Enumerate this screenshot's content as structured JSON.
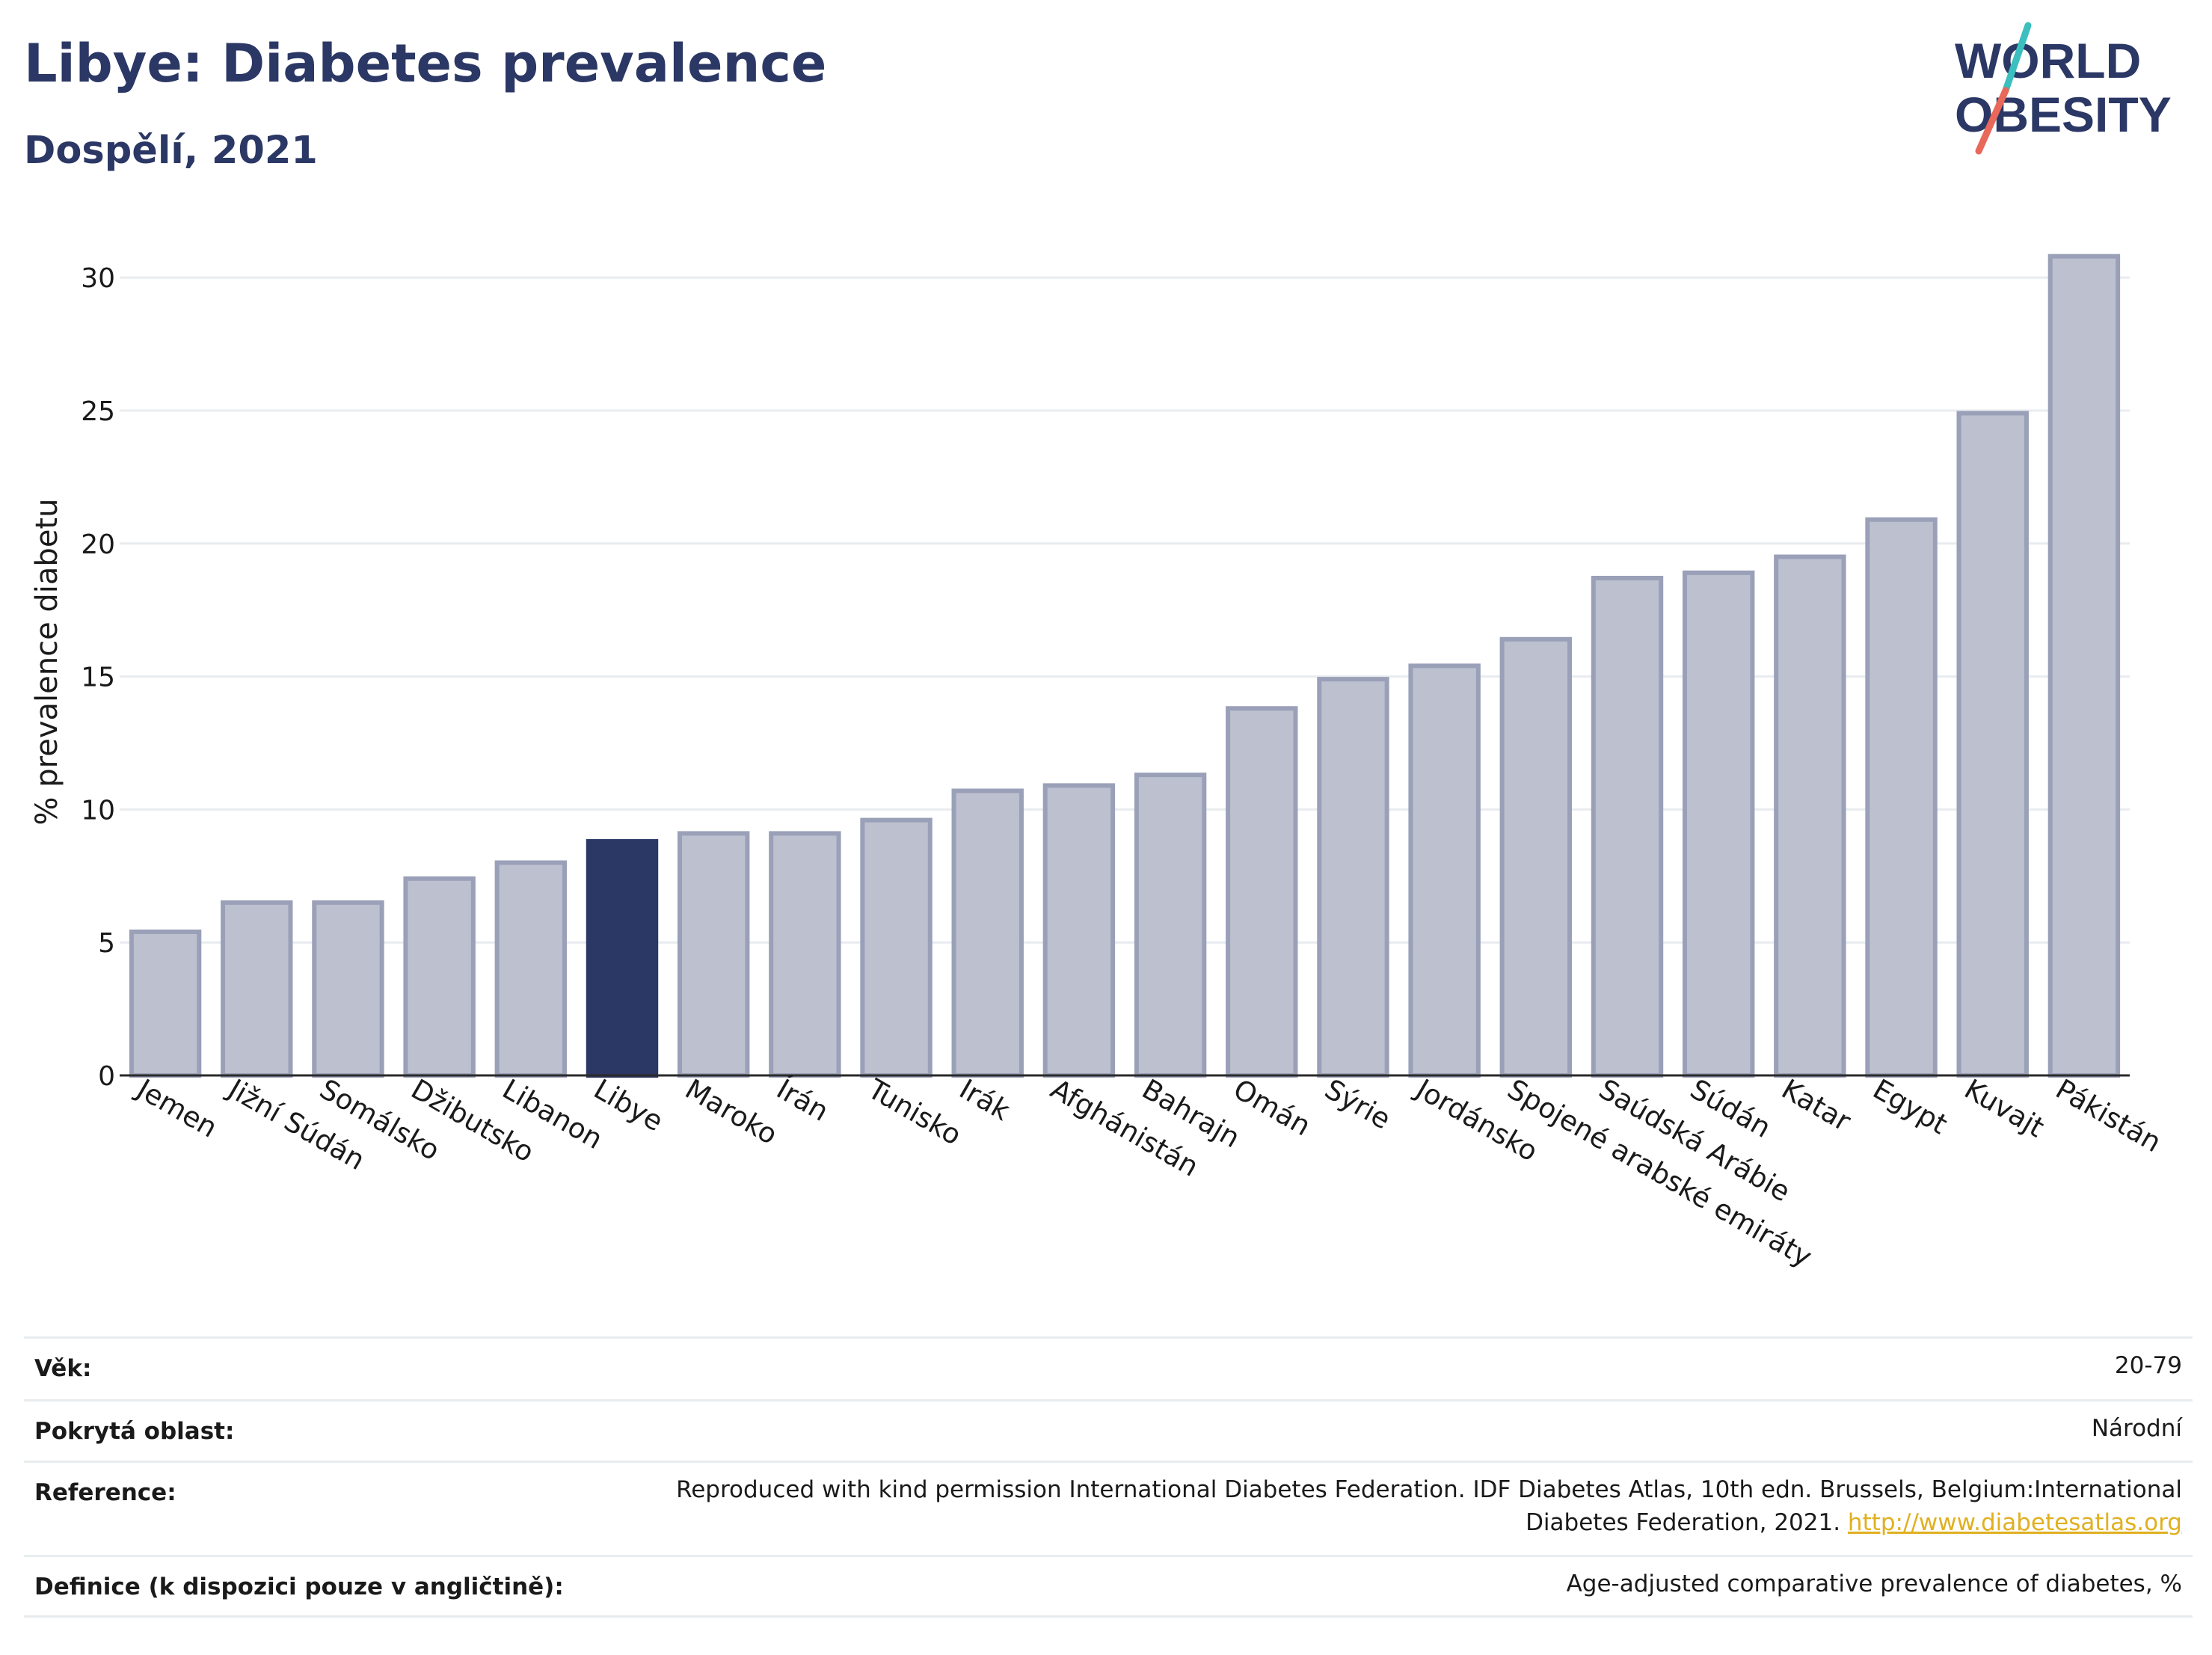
{
  "header": {
    "title": "Libye: Diabetes prevalence",
    "subtitle": "Dospělí, 2021"
  },
  "logo": {
    "line1": "WORLD",
    "line2": "OBESITY",
    "colors": {
      "text": "#2b3764",
      "slash_top": "#3bbfbf",
      "slash_bottom": "#e8685a"
    }
  },
  "colors": {
    "bar": "#bcc0cf",
    "bar_border": "#9aa0b8",
    "highlight": "#2b3764",
    "grid": "#e8ecef",
    "title": "#2b3764"
  },
  "chart_data": {
    "type": "bar",
    "title": "",
    "xlabel": "",
    "ylabel": "% prevalence diabetu",
    "ylim": [
      0,
      32
    ],
    "yticks": [
      0,
      5,
      10,
      15,
      20,
      25,
      30
    ],
    "grid": true,
    "highlight": "Libye",
    "categories": [
      "Jemen",
      "Jižní Súdán",
      "Somálsko",
      "Džibutsko",
      "Libanon",
      "Libye",
      "Maroko",
      "Írán",
      "Tunisko",
      "Irák",
      "Afghánistán",
      "Bahrajn",
      "Omán",
      "Sýrie",
      "Jordánsko",
      "Spojené arabské emiráty",
      "Saúdská Arábie",
      "Súdán",
      "Katar",
      "Egypt",
      "Kuvajt",
      "Pákistán"
    ],
    "values": [
      5.4,
      6.5,
      6.5,
      7.4,
      8.0,
      8.8,
      9.1,
      9.1,
      9.6,
      10.7,
      10.9,
      11.3,
      13.8,
      14.9,
      15.4,
      16.4,
      18.7,
      18.9,
      19.5,
      20.9,
      24.9,
      30.8
    ]
  },
  "info": {
    "rows": [
      {
        "label": "Věk:",
        "value": "20-79"
      },
      {
        "label": "Pokrytá oblast:",
        "value": "Národní"
      },
      {
        "label": "Reference:",
        "value": "Reproduced with kind permission International Diabetes Federation.  IDF Diabetes Atlas, 10th edn. Brussels, Belgium:International Diabetes Federation, 2021.",
        "link": "http://www.diabetesatlas.org"
      },
      {
        "label": "Definice (k dispozici pouze v angličtině):",
        "value": "Age-adjusted comparative prevalence of diabetes, %"
      }
    ]
  }
}
